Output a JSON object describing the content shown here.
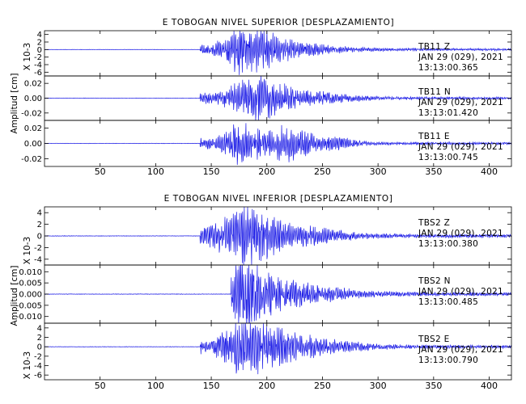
{
  "colors": {
    "trace": "#1a1ae6",
    "axis": "#000000",
    "background": "#ffffff"
  },
  "chart_data": [
    {
      "type": "line",
      "title": "E TOBOGAN NIVEL SUPERIOR [DESPLAZAMIENTO]",
      "ylabel": "Amplitud [cm]",
      "xlim": [
        0,
        420
      ],
      "xticks": [
        50,
        100,
        150,
        200,
        250,
        300,
        350,
        400
      ],
      "xtick_labels": [
        "50",
        "100",
        "150",
        "200",
        "250",
        "300",
        "350",
        "400"
      ],
      "grid": false,
      "panels": [
        {
          "component": "Z",
          "info": [
            "TB11    Z",
            "JAN 29 (029), 2021",
            "13:13:00.365"
          ],
          "unit_label": "X 10-3",
          "ylim": [
            -7,
            5
          ],
          "yticks": [
            -6,
            -4,
            -2,
            0,
            2,
            4
          ],
          "ytick_labels": [
            "-6",
            "-4",
            "-2",
            "0",
            "2",
            "4"
          ],
          "amplitude": 4.8,
          "onset": 140,
          "bursts": [
            [
              190,
              28,
              1.0
            ],
            [
              172,
              12,
              0.45
            ],
            [
              232,
              40,
              0.25
            ]
          ],
          "seed": 11
        },
        {
          "component": "N",
          "info": [
            "TB11    N",
            "JAN 29 (029), 2021",
            "13:13:01.420"
          ],
          "unit_label": "",
          "ylim": [
            -0.03,
            0.03
          ],
          "yticks": [
            -0.02,
            0.0,
            0.02
          ],
          "ytick_labels": [
            "-0.02",
            "0.00",
            "0.02"
          ],
          "amplitude": 0.026,
          "onset": 140,
          "bursts": [
            [
              190,
              26,
              1.0
            ],
            [
              232,
              42,
              0.3
            ]
          ],
          "seed": 23
        },
        {
          "component": "E",
          "info": [
            "TB11    E",
            "JAN 29 (029), 2021",
            "13:13:00.745"
          ],
          "unit_label": "",
          "ylim": [
            -0.03,
            0.03
          ],
          "yticks": [
            -0.02,
            0.0,
            0.02
          ],
          "ytick_labels": [
            "-0.02",
            "0.00",
            "0.02"
          ],
          "amplitude": 0.026,
          "onset": 140,
          "bursts": [
            [
              178,
              18,
              1.0
            ],
            [
              220,
              18,
              0.95
            ],
            [
              258,
              22,
              0.3
            ]
          ],
          "seed": 37
        }
      ]
    },
    {
      "type": "line",
      "title": "E TOBOGAN NIVEL INFERIOR [DESPLAZAMIENTO]",
      "ylabel": "Amplitud [cm]",
      "xlim": [
        0,
        420
      ],
      "xticks": [
        50,
        100,
        150,
        200,
        250,
        300,
        350,
        400
      ],
      "xtick_labels": [
        "50",
        "100",
        "150",
        "200",
        "250",
        "300",
        "350",
        "400"
      ],
      "grid": false,
      "panels": [
        {
          "component": "Z",
          "info": [
            "TBS2    Z",
            "JAN 29 (029), 2021",
            "13:13:00.380"
          ],
          "unit_label": "X 10-3",
          "ylim": [
            -5,
            5
          ],
          "yticks": [
            -4,
            -2,
            0,
            2,
            4
          ],
          "ytick_labels": [
            "-4",
            "-2",
            "0",
            "2",
            "4"
          ],
          "amplitude": 4.6,
          "onset": 140,
          "bursts": [
            [
              182,
              26,
              1.0
            ],
            [
              228,
              40,
              0.3
            ]
          ],
          "seed": 51
        },
        {
          "component": "N",
          "info": [
            "TBS2    N",
            "JAN 29 (029), 2021",
            "13:13:00.485"
          ],
          "unit_label": "",
          "ylim": [
            -0.013,
            0.013
          ],
          "yticks": [
            -0.01,
            -0.005,
            0.0,
            0.005,
            0.01
          ],
          "ytick_labels": [
            "-0.010",
            "-0.005",
            "0.000",
            "0.005",
            "0.010"
          ],
          "amplitude": 0.012,
          "onset": 168,
          "bursts": [
            [
              180,
              14,
              1.0
            ],
            [
              200,
              30,
              0.5
            ],
            [
              240,
              40,
              0.2
            ]
          ],
          "seed": 67
        },
        {
          "component": "E",
          "info": [
            "TBS2    E",
            "JAN 29 (029), 2021",
            "13:13:00.790"
          ],
          "unit_label": "X 10-3",
          "ylim": [
            -7,
            5
          ],
          "yticks": [
            -6,
            -4,
            -2,
            0,
            2,
            4
          ],
          "ytick_labels": [
            "-6",
            "-4",
            "-2",
            "0",
            "2",
            "4"
          ],
          "amplitude": 5.2,
          "onset": 140,
          "bursts": [
            [
              178,
              20,
              1.0
            ],
            [
              210,
              26,
              0.55
            ],
            [
              250,
              40,
              0.25
            ]
          ],
          "seed": 83
        }
      ]
    }
  ]
}
